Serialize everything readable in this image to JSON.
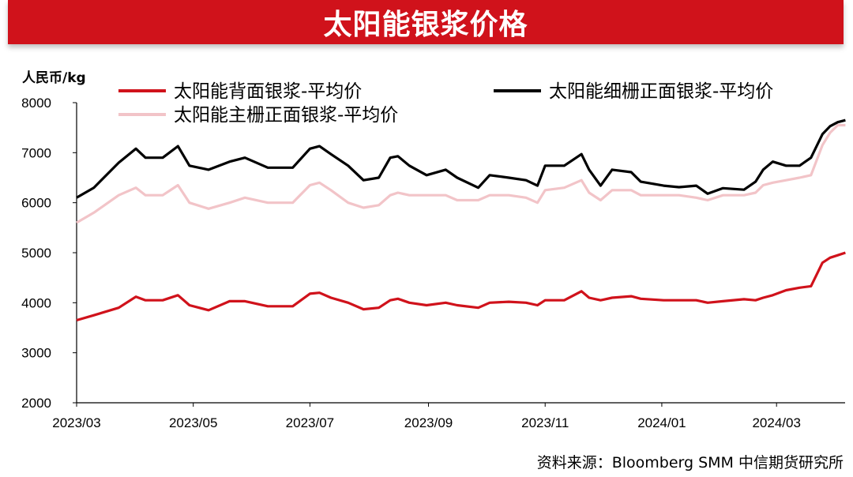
{
  "title": "太阳能银浆价格",
  "source": "资料来源：Bloomberg SMM 中信期货研究所",
  "chart_data": {
    "type": "line",
    "title": "太阳能银浆价格",
    "ylabel": "人民币/kg",
    "xlabel": "",
    "ylim": [
      2000,
      8000
    ],
    "yticks": [
      2000,
      3000,
      4000,
      5000,
      6000,
      7000,
      8000
    ],
    "xlim": [
      "2023-03-01",
      "2024-04-10"
    ],
    "xticks": [
      "2023/03",
      "2023/05",
      "2023/07",
      "2023/09",
      "2023/11",
      "2024/01",
      "2024/03"
    ],
    "grid": false,
    "legend_position": "top",
    "x": [
      "2023-03-01",
      "2023-03-10",
      "2023-03-23",
      "2023-04-01",
      "2023-04-06",
      "2023-04-15",
      "2023-04-23",
      "2023-04-29",
      "2023-05-09",
      "2023-05-20",
      "2023-05-28",
      "2023-06-09",
      "2023-06-22",
      "2023-07-01",
      "2023-07-06",
      "2023-07-12",
      "2023-07-21",
      "2023-07-29",
      "2023-08-06",
      "2023-08-12",
      "2023-08-16",
      "2023-08-22",
      "2023-08-31",
      "2023-09-10",
      "2023-09-16",
      "2023-09-27",
      "2023-10-03",
      "2023-10-13",
      "2023-10-22",
      "2023-10-28",
      "2023-11-01",
      "2023-11-11",
      "2023-11-20",
      "2023-11-24",
      "2023-11-30",
      "2023-12-06",
      "2023-12-16",
      "2023-12-21",
      "2024-01-02",
      "2024-01-10",
      "2024-01-19",
      "2024-01-25",
      "2024-02-02",
      "2024-02-13",
      "2024-02-19",
      "2024-02-23",
      "2024-02-28",
      "2024-03-06",
      "2024-03-13",
      "2024-03-19",
      "2024-03-25",
      "2024-03-29",
      "2024-04-02",
      "2024-04-06"
    ],
    "series": [
      {
        "name": "太阳能背面银浆-平均价",
        "color": "#D0121B",
        "values": [
          3650,
          3750,
          3900,
          4120,
          4050,
          4050,
          4150,
          3950,
          3850,
          4030,
          4030,
          3930,
          3930,
          4180,
          4200,
          4100,
          4000,
          3870,
          3900,
          4050,
          4080,
          4000,
          3950,
          4000,
          3950,
          3900,
          4000,
          4020,
          4000,
          3950,
          4050,
          4050,
          4230,
          4100,
          4050,
          4100,
          4130,
          4080,
          4050,
          4050,
          4050,
          4000,
          4030,
          4070,
          4050,
          4100,
          4150,
          4250,
          4300,
          4330,
          4800,
          4900,
          4950,
          5000
        ]
      },
      {
        "name": "太阳能细栅正面银浆-平均价",
        "color": "#000000",
        "values": [
          6100,
          6300,
          6800,
          7080,
          6900,
          6900,
          7130,
          6740,
          6660,
          6820,
          6900,
          6700,
          6700,
          7080,
          7130,
          6970,
          6740,
          6450,
          6500,
          6900,
          6930,
          6740,
          6550,
          6660,
          6500,
          6300,
          6550,
          6500,
          6450,
          6340,
          6740,
          6740,
          6970,
          6660,
          6340,
          6660,
          6610,
          6420,
          6340,
          6310,
          6340,
          6180,
          6290,
          6260,
          6420,
          6660,
          6820,
          6740,
          6740,
          6900,
          7370,
          7530,
          7610,
          7650
        ]
      },
      {
        "name": "太阳能主栅正面银浆-平均价",
        "color": "#F2C4C8",
        "values": [
          5600,
          5800,
          6150,
          6300,
          6150,
          6150,
          6350,
          6000,
          5880,
          6000,
          6100,
          6000,
          6000,
          6350,
          6400,
          6250,
          6000,
          5900,
          5950,
          6150,
          6200,
          6150,
          6150,
          6150,
          6050,
          6050,
          6150,
          6150,
          6100,
          6000,
          6250,
          6300,
          6450,
          6200,
          6050,
          6250,
          6250,
          6150,
          6150,
          6150,
          6100,
          6050,
          6150,
          6150,
          6200,
          6350,
          6400,
          6450,
          6500,
          6550,
          7150,
          7400,
          7550,
          7550
        ]
      }
    ]
  }
}
